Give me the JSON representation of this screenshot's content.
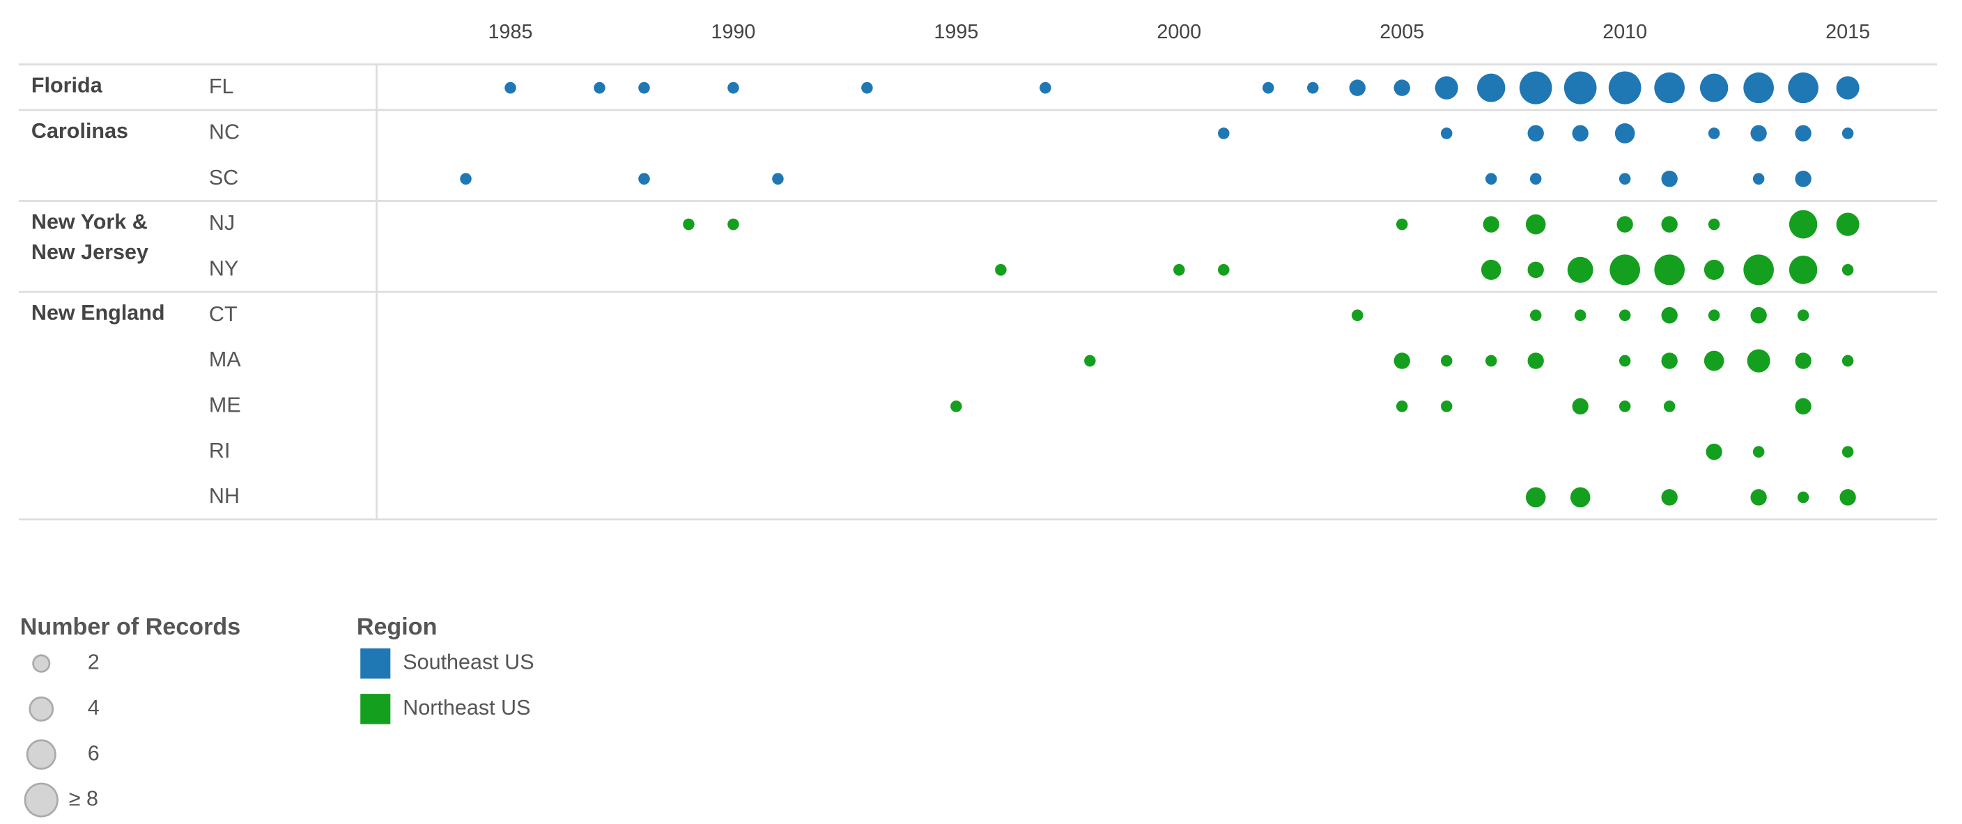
{
  "chart_data": {
    "type": "dotplot",
    "xlim": [
      1982,
      2017
    ],
    "xticks": [
      1985,
      1990,
      1995,
      2000,
      2005,
      2010,
      2015
    ],
    "groups": [
      {
        "name": "Florida",
        "states": [
          {
            "name": "FL",
            "color": "#1f77b4",
            "x": [
              1985,
              1987,
              1988,
              1990,
              1993,
              1997,
              2002,
              2003,
              2004,
              2005,
              2006,
              2007,
              2008,
              2009,
              2010,
              2011,
              2012,
              2013,
              2014,
              2015
            ],
            "values": [
              1,
              1,
              1,
              1,
              1,
              1,
              1,
              1,
              2,
              2,
              4,
              6,
              8,
              8,
              8,
              7,
              6,
              7,
              7,
              4
            ]
          }
        ]
      },
      {
        "name": "Carolinas",
        "states": [
          {
            "name": "NC",
            "color": "#1f77b4",
            "x": [
              2001,
              2006,
              2008,
              2009,
              2010,
              2012,
              2013,
              2014,
              2015
            ],
            "values": [
              1,
              1,
              2,
              2,
              3,
              1,
              2,
              2,
              1
            ]
          },
          {
            "name": "SC",
            "color": "#1f77b4",
            "x": [
              1984,
              1988,
              1991,
              2007,
              2008,
              2010,
              2011,
              2013,
              2014
            ],
            "values": [
              1,
              1,
              1,
              1,
              1,
              1,
              2,
              1,
              2
            ]
          }
        ]
      },
      {
        "name": "New York & New Jersey",
        "states": [
          {
            "name": "NJ",
            "color": "#14a01e",
            "x": [
              1989,
              1990,
              2005,
              2007,
              2008,
              2010,
              2011,
              2012,
              2014,
              2015
            ],
            "values": [
              1,
              1,
              1,
              2,
              3,
              2,
              2,
              1,
              6,
              4
            ]
          },
          {
            "name": "NY",
            "color": "#14a01e",
            "x": [
              1996,
              2000,
              2001,
              2007,
              2008,
              2009,
              2010,
              2011,
              2012,
              2013,
              2014,
              2015
            ],
            "values": [
              1,
              1,
              1,
              3,
              2,
              5,
              7,
              7,
              3,
              7,
              6,
              1
            ]
          }
        ]
      },
      {
        "name": "New England",
        "states": [
          {
            "name": "CT",
            "color": "#14a01e",
            "x": [
              2004,
              2008,
              2009,
              2010,
              2011,
              2012,
              2013,
              2014
            ],
            "values": [
              1,
              1,
              1,
              1,
              2,
              1,
              2,
              1
            ]
          },
          {
            "name": "MA",
            "color": "#14a01e",
            "x": [
              1998,
              2005,
              2006,
              2007,
              2008,
              2010,
              2011,
              2012,
              2013,
              2014,
              2015
            ],
            "values": [
              1,
              2,
              1,
              1,
              2,
              1,
              2,
              3,
              4,
              2,
              1
            ]
          },
          {
            "name": "ME",
            "color": "#14a01e",
            "x": [
              1995,
              2005,
              2006,
              2009,
              2010,
              2011,
              2014
            ],
            "values": [
              1,
              1,
              1,
              2,
              1,
              1,
              2
            ]
          },
          {
            "name": "RI",
            "color": "#14a01e",
            "x": [
              2012,
              2013,
              2015
            ],
            "values": [
              2,
              1,
              1
            ]
          },
          {
            "name": "NH",
            "color": "#14a01e",
            "x": [
              2008,
              2009,
              2011,
              2013,
              2014,
              2015
            ],
            "values": [
              3,
              3,
              2,
              2,
              1,
              2
            ]
          }
        ]
      }
    ],
    "size_legend": {
      "title": "Number of Records",
      "entries": [
        2,
        4,
        6,
        {
          "value": 8,
          "label": "≥ 8"
        }
      ]
    },
    "color_legend": {
      "title": "Region",
      "entries": [
        {
          "name": "Southeast US",
          "color": "#1f77b4"
        },
        {
          "name": "Northeast US",
          "color": "#14a01e"
        }
      ]
    }
  }
}
